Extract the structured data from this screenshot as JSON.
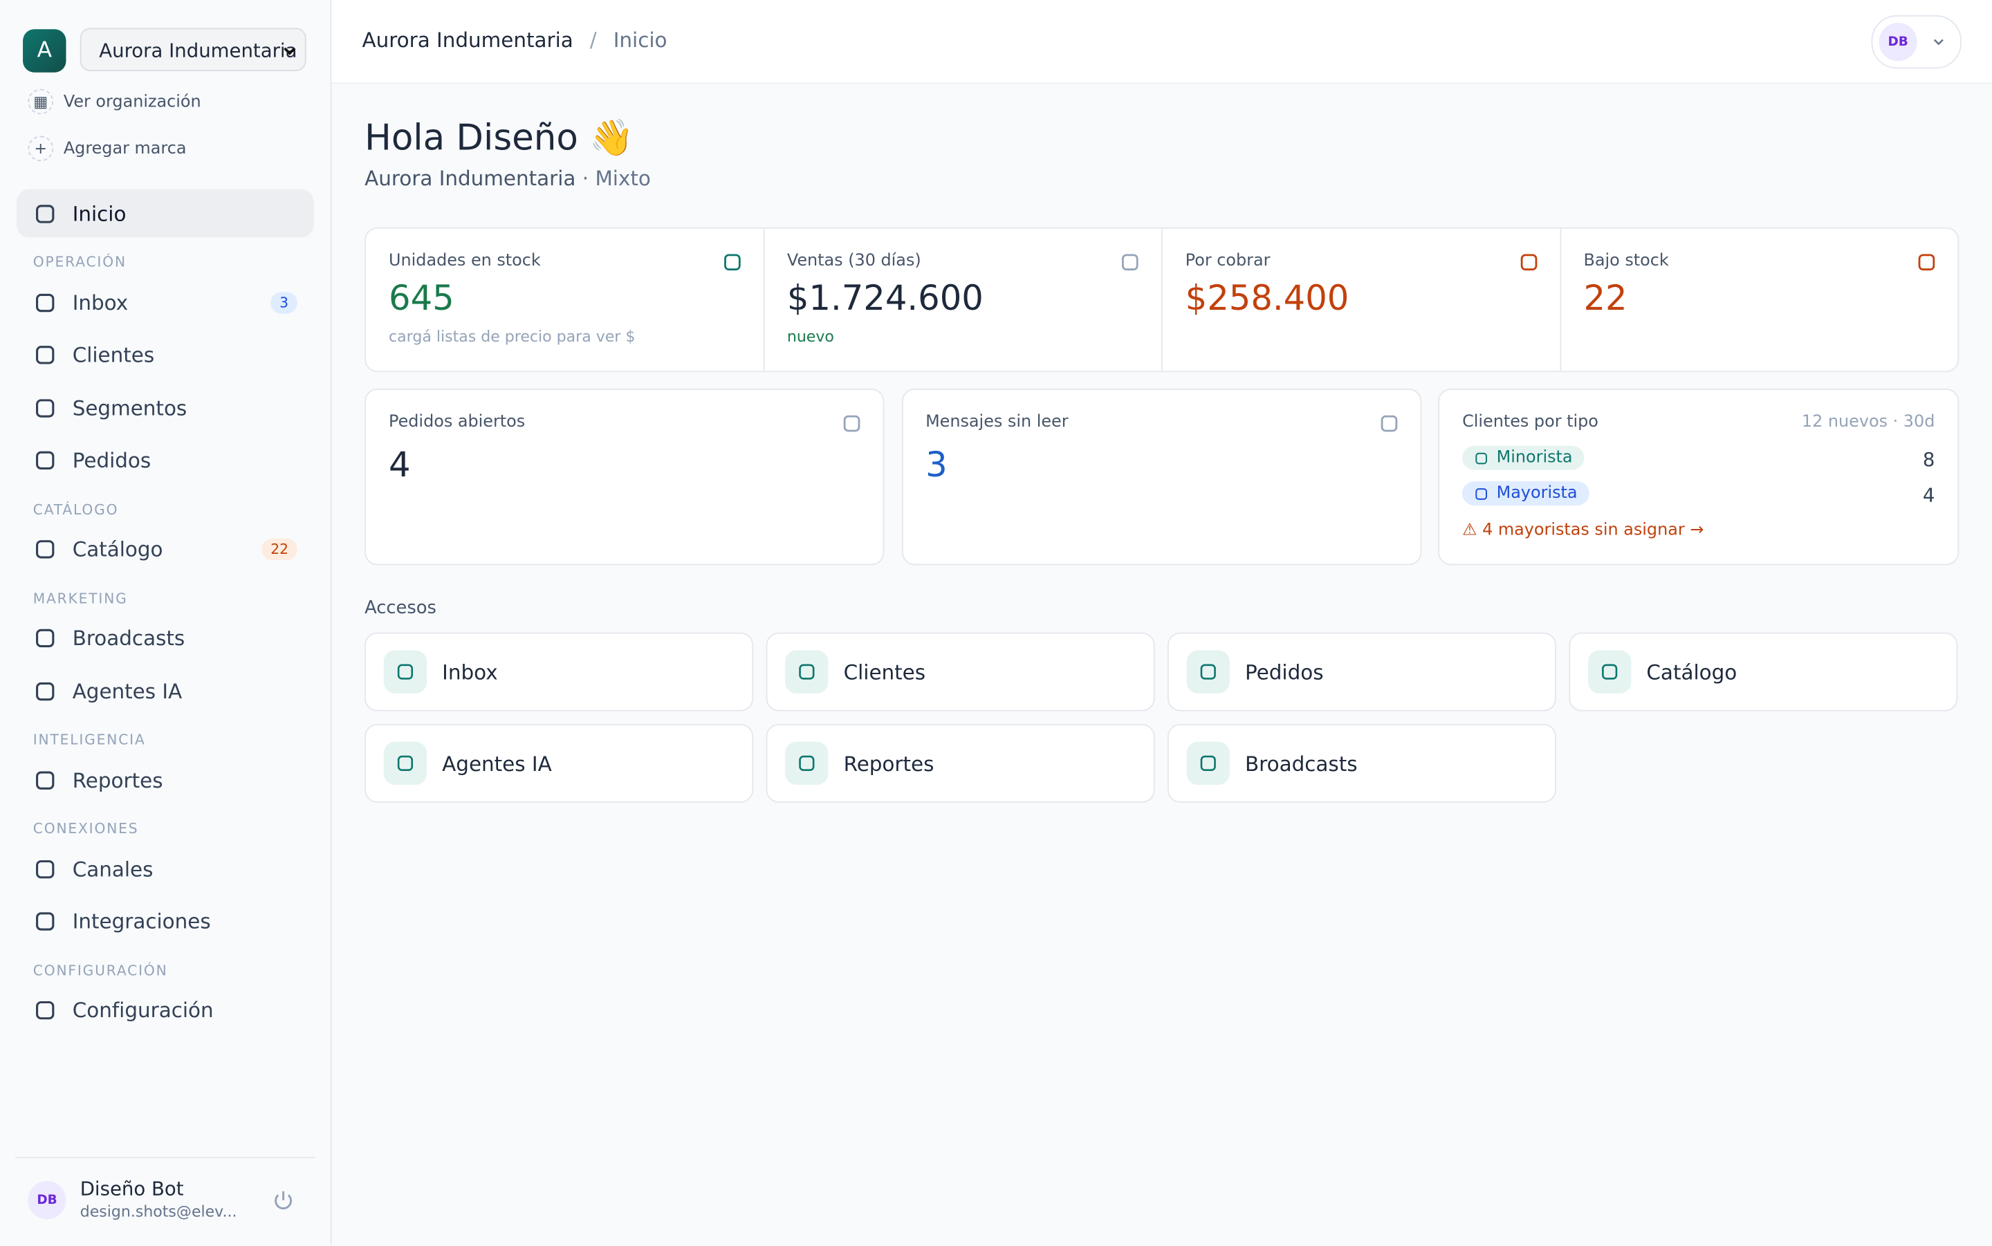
{
  "sidebar": {
    "org_initial": "A",
    "org_name": "Aurora Indumentaria",
    "org_links": [
      "Ver organización",
      "Agregar marca"
    ],
    "home": "Inicio",
    "sections": [
      {
        "heading": "OPERACIÓN",
        "items": [
          {
            "label": "Inbox",
            "badge": 3
          },
          {
            "label": "Clientes"
          },
          {
            "label": "Segmentos"
          },
          {
            "label": "Pedidos"
          }
        ]
      },
      {
        "heading": "CATÁLOGO",
        "items": [
          {
            "label": "Catálogo",
            "badge": 22
          }
        ]
      },
      {
        "heading": "MARKETING",
        "items": [
          {
            "label": "Broadcasts"
          },
          {
            "label": "Agentes IA"
          }
        ]
      },
      {
        "heading": "INTELIGENCIA",
        "items": [
          {
            "label": "Reportes"
          }
        ]
      },
      {
        "heading": "CONEXIONES",
        "items": [
          {
            "label": "Canales"
          },
          {
            "label": "Integraciones"
          }
        ]
      },
      {
        "heading": "CONFIGURACIÓN",
        "items": [
          {
            "label": "Configuración"
          }
        ]
      }
    ],
    "user": {
      "initials": "DB",
      "name": "Diseño Bot",
      "email": "design.shots@elev..."
    }
  },
  "header": {
    "breadcrumb": [
      "Aurora Indumentaria",
      "Inicio"
    ],
    "avatar": "DB"
  },
  "greeting": {
    "title": "Hola Diseño 👋",
    "org": "Aurora Indumentaria",
    "type": "· Mixto"
  },
  "stats": [
    {
      "label": "Unidades en stock",
      "value": "645",
      "note": "cargá listas de precio para ver $"
    },
    {
      "label": "Ventas (30 días)",
      "value": "$1.724.600",
      "note": "nuevo"
    },
    {
      "label": "Por cobrar",
      "value": "$258.400"
    },
    {
      "label": "Bajo stock",
      "value": "22"
    }
  ],
  "panels": [
    {
      "label": "Pedidos abiertos",
      "value": "4"
    },
    {
      "label": "Mensajes sin leer",
      "value": "3"
    }
  ],
  "clients_by_type": {
    "label": "Clientes por tipo",
    "meta": "12 nuevos · 30d",
    "rows": [
      {
        "name": "Minorista",
        "count": 8
      },
      {
        "name": "Mayorista",
        "count": 4
      }
    ],
    "warning": "⚠ 4 mayoristas sin asignar →"
  },
  "accesos": {
    "title": "Accesos",
    "items": [
      "Inbox",
      "Clientes",
      "Pedidos",
      "Catálogo",
      "Agentes IA",
      "Reportes",
      "Broadcasts"
    ]
  }
}
